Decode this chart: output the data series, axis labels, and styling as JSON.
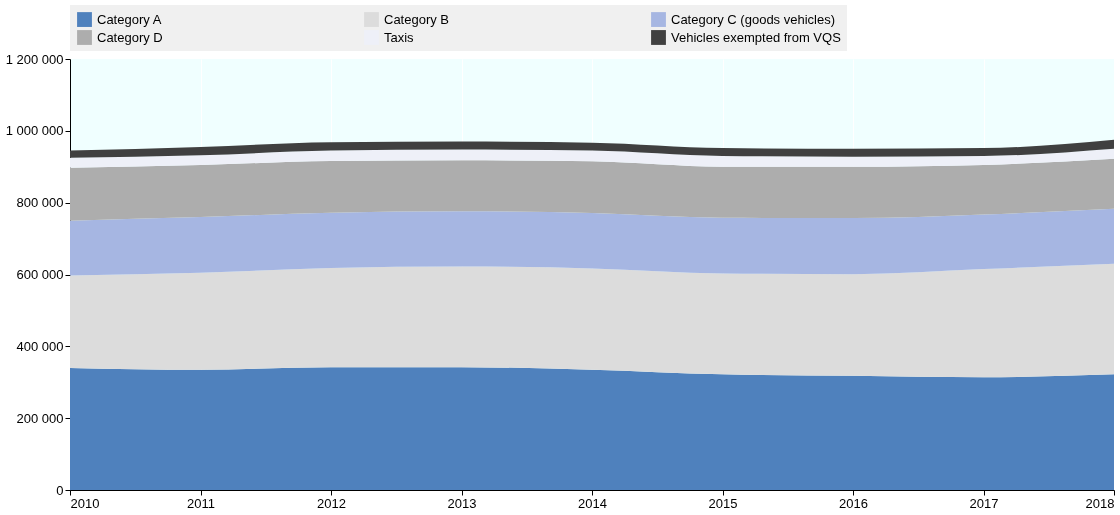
{
  "chart_data": {
    "type": "area",
    "stacked": true,
    "x": [
      2010,
      2011,
      2012,
      2013,
      2014,
      2015,
      2016,
      2017,
      2018
    ],
    "xlim": [
      2010,
      2018
    ],
    "xticks": [
      2010,
      2011,
      2012,
      2013,
      2014,
      2015,
      2016,
      2017,
      2018
    ],
    "ylim": [
      0,
      1200000
    ],
    "yticks": [
      {
        "value": 0,
        "label": "0"
      },
      {
        "value": 200000,
        "label": "200 000"
      },
      {
        "value": 400000,
        "label": "400 000"
      },
      {
        "value": 600000,
        "label": "600 000"
      },
      {
        "value": 800000,
        "label": "800 000"
      },
      {
        "value": 1000000,
        "label": "1 000 000"
      },
      {
        "value": 1200000,
        "label": "1 200 000"
      }
    ],
    "grid": "x",
    "legend": "top",
    "series": [
      {
        "name": "Category A",
        "color": "#4f81bd",
        "values": [
          340000,
          335000,
          342000,
          342000,
          335000,
          322000,
          318000,
          314000,
          322000
        ]
      },
      {
        "name": "Category B",
        "color": "#dcdcdc",
        "values": [
          257000,
          270000,
          276000,
          280000,
          282000,
          281000,
          283000,
          301000,
          308000
        ]
      },
      {
        "name": "Category C (goods vehicles)",
        "color": "#a6b6e2",
        "values": [
          153000,
          155000,
          154000,
          154000,
          154000,
          155000,
          156000,
          152000,
          153000
        ]
      },
      {
        "name": "Category D",
        "color": "#adadad",
        "values": [
          147000,
          145000,
          144000,
          142000,
          144000,
          142000,
          143000,
          138000,
          139000
        ]
      },
      {
        "name": "Taxis",
        "color": "#eef0f8",
        "values": [
          28000,
          27000,
          29000,
          30000,
          30000,
          30000,
          28000,
          25000,
          28000
        ]
      },
      {
        "name": "Vehicles exempted from VQS",
        "color": "#404040",
        "values": [
          20000,
          23000,
          23000,
          22000,
          22000,
          22000,
          22000,
          22000,
          25000
        ]
      }
    ]
  }
}
